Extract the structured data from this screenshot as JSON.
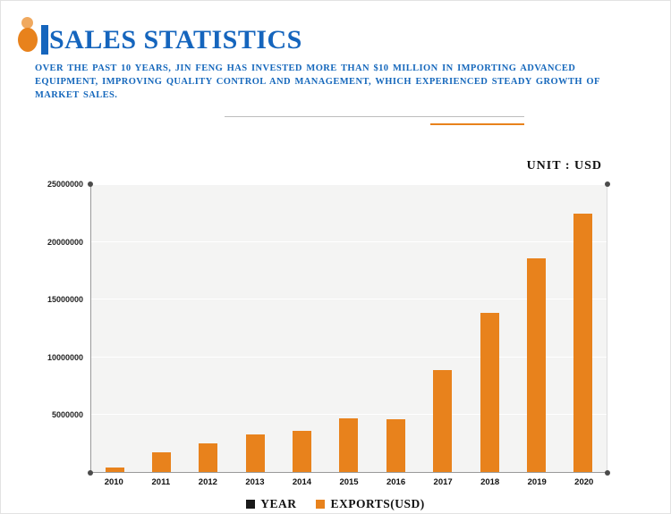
{
  "header": {
    "title": "SALES STATISTICS",
    "description": "OVER THE PAST 10 YEARS, JIN FENG HAS INVESTED MORE THAN $10 MILLION IN IMPORTING ADVANCED EQUIPMENT, IMPROVING QUALITY CONTROL AND MANAGEMENT, WHICH EXPERIENCED STEADY GROWTH OF MARKET SALES."
  },
  "chart": {
    "unit_label": "UNIT : USD"
  },
  "legend": [
    {
      "label": "YEAR",
      "color": "#1a1a1a"
    },
    {
      "label": "EXPORTS(USD)",
      "color": "#e8821c"
    }
  ],
  "colors": {
    "accent_blue": "#1565bd",
    "bar_orange": "#e8821c"
  },
  "chart_data": {
    "type": "bar",
    "title": "SALES STATISTICS",
    "xlabel": "YEAR",
    "ylabel": "EXPORTS(USD)",
    "categories": [
      "2010",
      "2011",
      "2012",
      "2013",
      "2014",
      "2015",
      "2016",
      "2017",
      "2018",
      "2019",
      "2020"
    ],
    "values": [
      400000,
      1700000,
      2500000,
      3300000,
      3600000,
      4700000,
      4600000,
      8900000,
      13900000,
      18600000,
      22500000
    ],
    "ylim": [
      0,
      25000000
    ],
    "yticks": [
      5000000,
      10000000,
      15000000,
      20000000,
      25000000
    ],
    "ytick_labels": [
      "5000000",
      "10000000",
      "15000000",
      "20000000",
      "25000000"
    ],
    "bar_color": "#e8821c",
    "grid": true,
    "legend_position": "bottom"
  }
}
